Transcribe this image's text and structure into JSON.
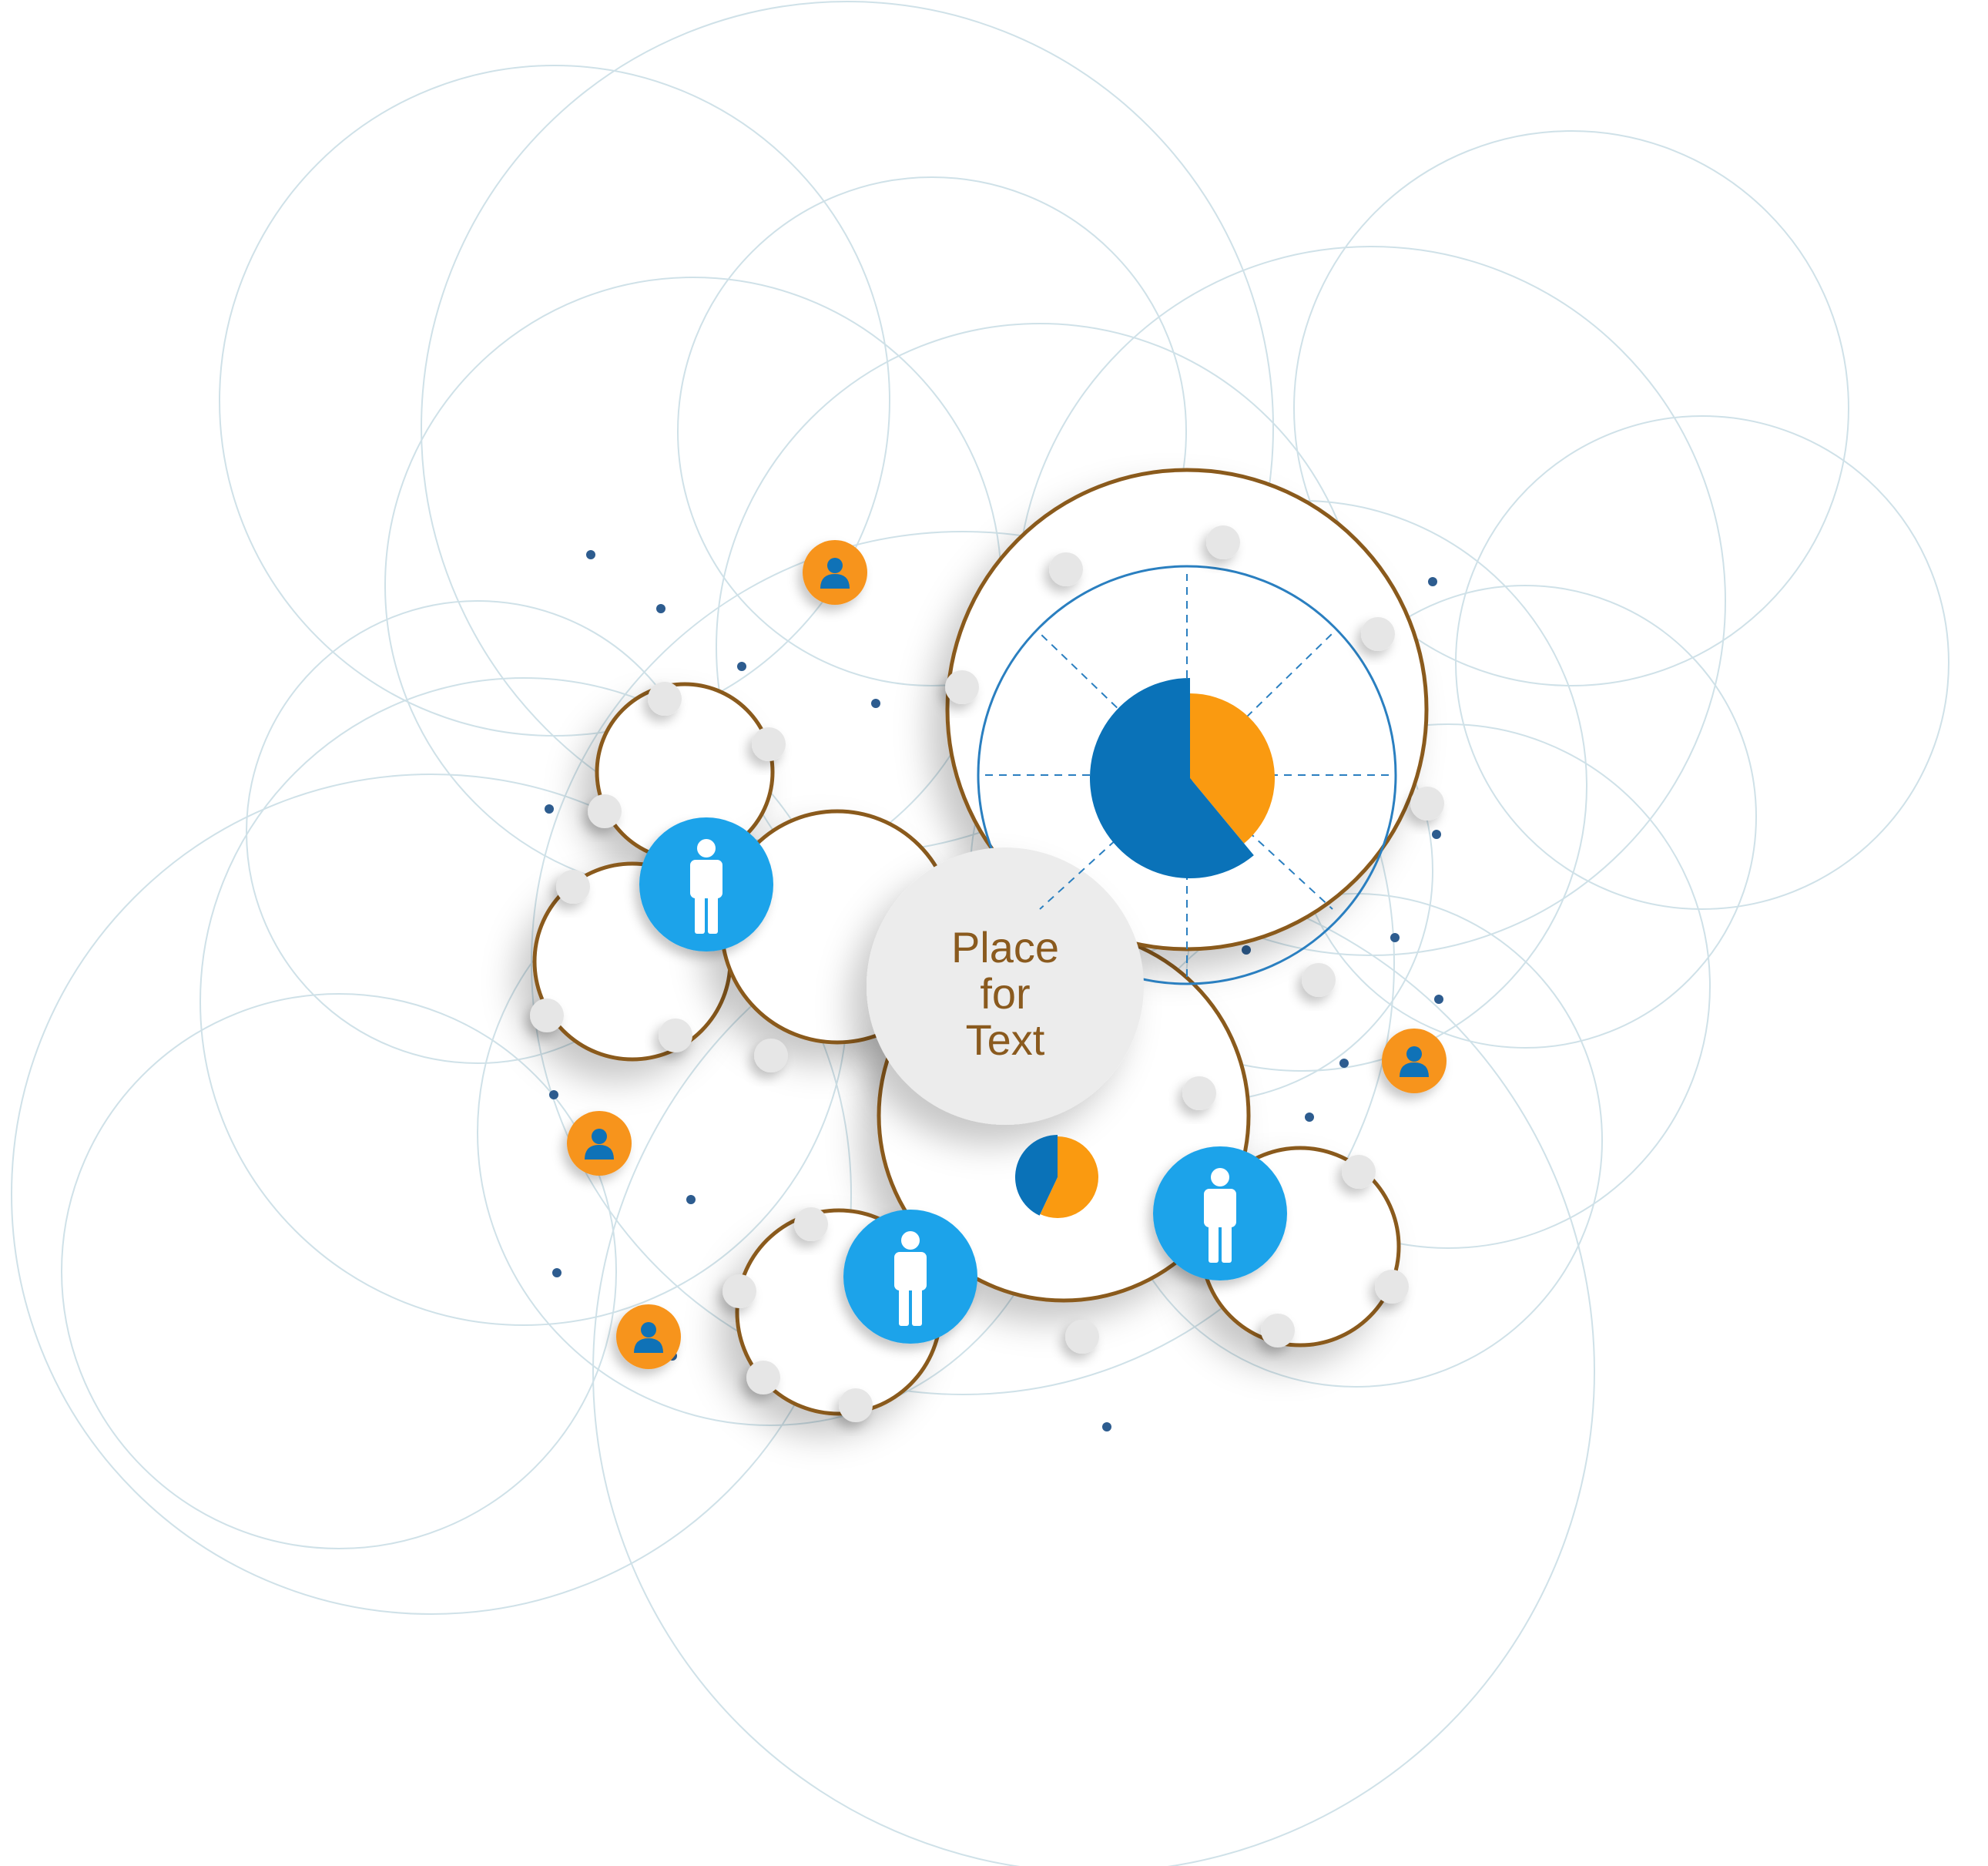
{
  "center": {
    "lines": [
      "Place",
      "for",
      "Text"
    ]
  },
  "colors": {
    "background": "#ffffff",
    "bg_circle": "#cfe1e8",
    "ring": "#8a5a1e",
    "disc": "#ffffff",
    "center_disc": "#ececec",
    "text": "#8a5a1e",
    "node": "#e6e6e6",
    "blue_person": "#1ba3ea",
    "orange_person": "#f7941d",
    "person_glyph_blue": "#ffffff",
    "person_glyph_orange": "#0f72b7",
    "pie_blue": "#0a72b8",
    "pie_orange": "#fa9a10",
    "dot": "#2d5c8f",
    "dash": "#2a7fc0"
  },
  "pies": [
    {
      "name": "main",
      "blue_fraction": 0.61
    },
    {
      "name": "small",
      "blue_fraction": 0.43
    }
  ],
  "icons": {
    "blue": "person-standing-icon",
    "orange": "user-profile-icon"
  }
}
